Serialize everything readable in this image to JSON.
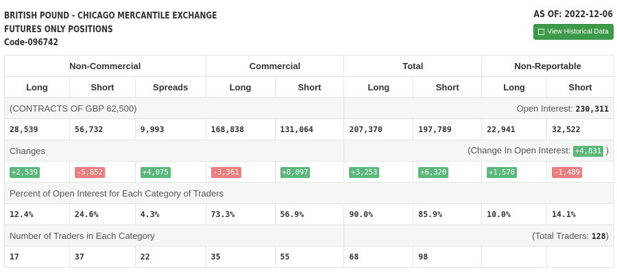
{
  "header": {
    "title_line1": "BRITISH POUND - CHICAGO MERCANTILE EXCHANGE",
    "title_line2": "FUTURES ONLY POSITIONS",
    "code": "Code-096742",
    "as_of": "AS OF: 2022-12-06",
    "history_button": "View Historical Data",
    "history_icon": "calendar-plus-icon"
  },
  "groups": [
    "Non-Commercial",
    "Commercial",
    "Total",
    "Non-Reportable"
  ],
  "columns": [
    "Long",
    "Short",
    "Spreads",
    "Long",
    "Short",
    "Long",
    "Short",
    "Long",
    "Short"
  ],
  "contracts": {
    "label": "(CONTRACTS OF GBP 62,500)",
    "oi_label": "Open Interest:",
    "oi_value": "230,311"
  },
  "positions": [
    "28,539",
    "56,732",
    "9,993",
    "168,838",
    "131,064",
    "207,370",
    "197,789",
    "22,941",
    "32,522"
  ],
  "changes": {
    "label": "Changes",
    "oi_label": "(Change In Open Interest:",
    "oi_value": "+4,831",
    "oi_close": ")",
    "values": [
      "+2,539",
      "-5,852",
      "+4,075",
      "-3,361",
      "+8,097",
      "+3,253",
      "+6,320",
      "+1,578",
      "-1,489"
    ]
  },
  "percent": {
    "label": "Percent of Open Interest for Each Category of Traders",
    "values": [
      "12.4%",
      "24.6%",
      "4.3%",
      "73.3%",
      "56.9%",
      "90.0%",
      "85.9%",
      "10.0%",
      "14.1%"
    ]
  },
  "traders": {
    "label": "Number of Traders in Each Category",
    "total_label": "(Total Traders:",
    "total_value": "128",
    "total_close": ")",
    "values": [
      "17",
      "37",
      "22",
      "35",
      "55",
      "68",
      "98",
      "",
      ""
    ]
  },
  "colors": {
    "positive": "#5cb87a",
    "negative": "#ef7f7f",
    "button": "#3c9a48"
  }
}
